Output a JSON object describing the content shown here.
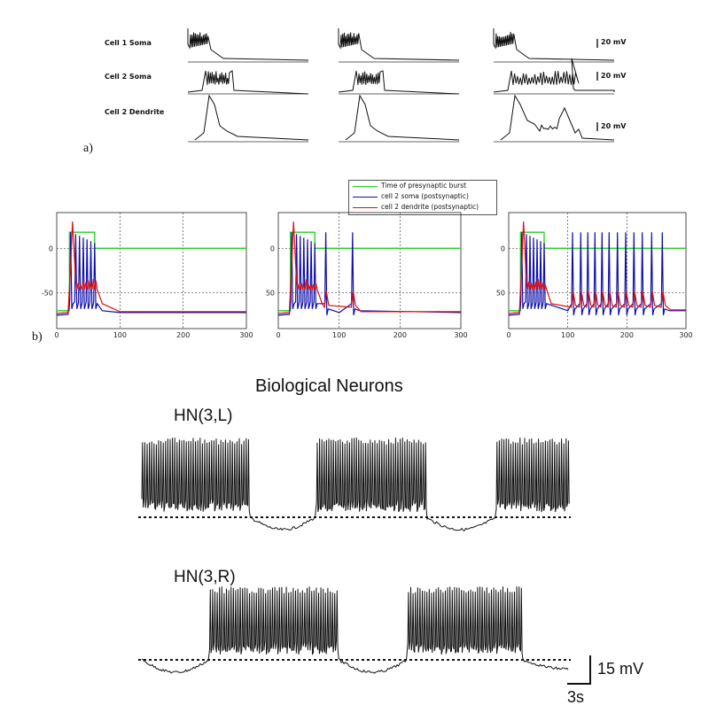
{
  "panel_a": {
    "letter": "a)",
    "rows": [
      {
        "label": "Cell 1 Soma",
        "scale": "20 mV"
      },
      {
        "label": "Cell 2 Soma",
        "scale": "20 mV"
      },
      {
        "label": "Cell 2 Dendrite",
        "scale": "20 mV"
      }
    ]
  },
  "panel_b": {
    "letter": "b)",
    "legend": [
      {
        "label": "Time of presynaptic burst",
        "color": "#22cc22"
      },
      {
        "label": "cell 2 soma (postsynaptic)",
        "color": "#1010aa"
      },
      {
        "label": "cell 2 dendrite (postsynaptic)",
        "color": "#dd1010"
      }
    ]
  },
  "panel_c": {
    "title": "Biological Neurons",
    "trace_labels": [
      "HN(3,L)",
      "HN(3,R)"
    ],
    "scale_voltage": "15 mV",
    "scale_time": "3s"
  },
  "chart_data": [
    {
      "type": "line",
      "title": "",
      "xlabel": "",
      "ylabel": "",
      "xlim": [
        0,
        300
      ],
      "x_ticks": [
        0,
        100,
        200,
        300
      ],
      "y_ticks": [
        0,
        -50
      ],
      "grid": "dotted",
      "series": [
        {
          "name": "Time of presynaptic burst",
          "color": "#22cc22",
          "x": [
            0,
            20,
            20,
            60,
            60,
            300
          ],
          "y": [
            -70,
            -70,
            18,
            18,
            0,
            0
          ]
        },
        {
          "name": "cell 2 soma (postsynaptic)",
          "color": "#1010aa",
          "spike_times": [
            22,
            30,
            36,
            42,
            48,
            54,
            60
          ],
          "resting": -72
        },
        {
          "name": "cell 2 dendrite (postsynaptic)",
          "color": "#dd1010",
          "resting": -71
        }
      ]
    },
    {
      "type": "line",
      "title": "",
      "xlabel": "",
      "ylabel": "",
      "xlim": [
        0,
        300
      ],
      "x_ticks": [
        0,
        100,
        200,
        300
      ],
      "y_ticks": [
        0,
        50
      ],
      "grid": "dotted",
      "series": [
        {
          "name": "Time of presynaptic burst",
          "color": "#22cc22",
          "x": [
            0,
            20,
            20,
            60,
            60,
            300
          ],
          "y": [
            -70,
            -70,
            18,
            18,
            0,
            0
          ]
        },
        {
          "name": "cell 2 soma (postsynaptic)",
          "color": "#1010aa",
          "spike_times": [
            22,
            30,
            36,
            42,
            48,
            54,
            60,
            78,
            122
          ],
          "resting": -72
        },
        {
          "name": "cell 2 dendrite (postsynaptic)",
          "color": "#dd1010",
          "resting": -71
        }
      ]
    },
    {
      "type": "line",
      "title": "",
      "xlabel": "",
      "ylabel": "",
      "xlim": [
        0,
        300
      ],
      "x_ticks": [
        0,
        100,
        200,
        300
      ],
      "y_ticks": [
        0,
        50
      ],
      "grid": "dotted",
      "series": [
        {
          "name": "Time of presynaptic burst",
          "color": "#22cc22",
          "x": [
            0,
            20,
            20,
            60,
            60,
            300
          ],
          "y": [
            -70,
            -70,
            18,
            18,
            0,
            0
          ]
        },
        {
          "name": "cell 2 soma (postsynaptic)",
          "color": "#1010aa",
          "spike_times": [
            22,
            30,
            36,
            42,
            48,
            54,
            60,
            108,
            122,
            134,
            146,
            158,
            170,
            184,
            198,
            212,
            226,
            242,
            260
          ],
          "resting": -70
        },
        {
          "name": "cell 2 dendrite (postsynaptic)",
          "color": "#dd1010",
          "resting": -69
        }
      ]
    }
  ]
}
